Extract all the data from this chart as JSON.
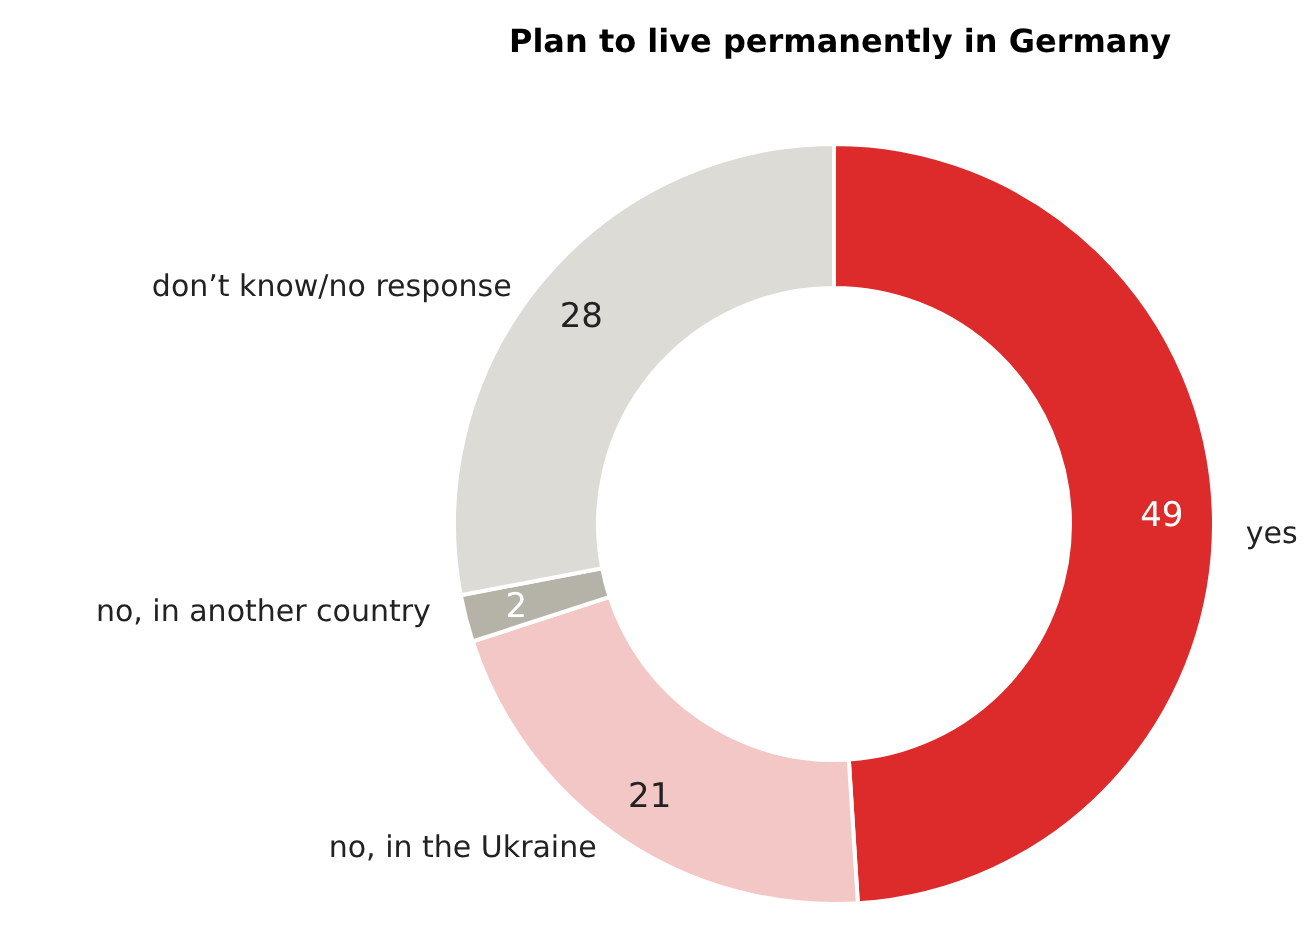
{
  "chart_data": {
    "type": "donut",
    "title": "Plan to live permanently in Germany",
    "categories": [
      "yes",
      "no, in the Ukraine",
      "no, in another country",
      "don’t know/no response"
    ],
    "values": [
      49,
      21,
      2,
      28
    ],
    "colors": [
      "#dd2a2b",
      "#f4c7c7",
      "#b5b2a8",
      "#dddbd6"
    ],
    "data_labels": true
  }
}
